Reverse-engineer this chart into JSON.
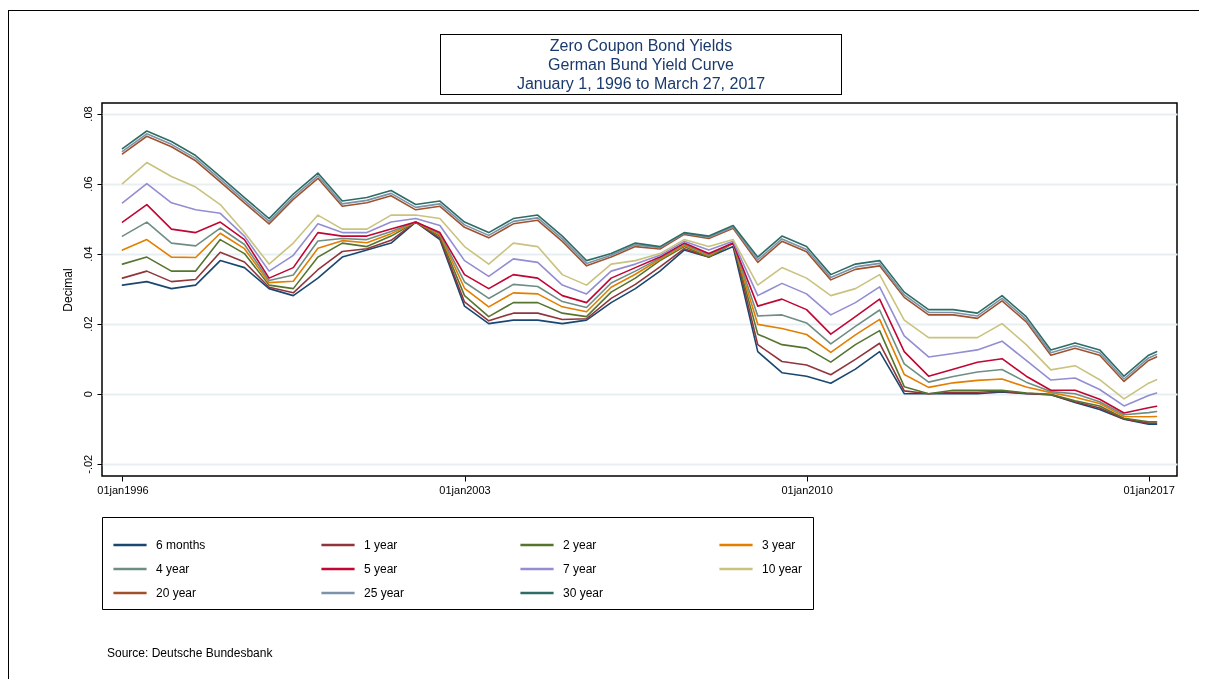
{
  "chart_data": {
    "type": "line",
    "title": "Zero Coupon Bond Yields",
    "subtitle": "German Bund Yield Curve\nJanuary 1, 1996 to March 27, 2017",
    "ylabel": "Decimal",
    "annotations": [
      "Source: Deutsche Bundesbank"
    ],
    "xlim": [
      "1995-08",
      "2017-08"
    ],
    "xticks": [
      {
        "value": "1996-01-01",
        "label": "01jan1996"
      },
      {
        "value": "2003-01-01",
        "label": "01jan2003"
      },
      {
        "value": "2010-01-01",
        "label": "01jan2010"
      },
      {
        "value": "2017-01-01",
        "label": "01jan2017"
      }
    ],
    "ylim": [
      -0.0235,
      0.083
    ],
    "yticks": [
      {
        "value": -0.02,
        "label": "-.02"
      },
      {
        "value": 0,
        "label": "0"
      },
      {
        "value": 0.02,
        "label": ".02"
      },
      {
        "value": 0.04,
        "label": ".04"
      },
      {
        "value": 0.06,
        "label": ".06"
      },
      {
        "value": 0.08,
        "label": ".08"
      }
    ],
    "grid": "y",
    "legend": "bottom",
    "line_style": "solid",
    "marker": "none",
    "x": [
      "1996-01",
      "1996-07",
      "1997-01",
      "1997-07",
      "1998-01",
      "1998-07",
      "1999-01",
      "1999-07",
      "2000-01",
      "2000-07",
      "2001-01",
      "2001-07",
      "2002-01",
      "2002-07",
      "2003-01",
      "2003-07",
      "2004-01",
      "2004-07",
      "2005-01",
      "2005-07",
      "2006-01",
      "2006-07",
      "2007-01",
      "2007-07",
      "2008-01",
      "2008-07",
      "2009-01",
      "2009-07",
      "2010-01",
      "2010-07",
      "2011-01",
      "2011-07",
      "2012-01",
      "2012-07",
      "2013-01",
      "2013-07",
      "2014-01",
      "2014-07",
      "2015-01",
      "2015-07",
      "2016-01",
      "2016-07",
      "2017-01",
      "2017-03"
    ],
    "series": [
      {
        "name": "6 months",
        "color": "#1a476f",
        "values": [
          0.031,
          0.032,
          0.03,
          0.031,
          0.038,
          0.036,
          0.03,
          0.028,
          0.033,
          0.039,
          0.041,
          0.043,
          0.049,
          0.044,
          0.025,
          0.02,
          0.021,
          0.021,
          0.02,
          0.021,
          0.026,
          0.03,
          0.035,
          0.041,
          0.039,
          0.042,
          0.012,
          0.006,
          0.005,
          0.003,
          0.007,
          0.012,
          0.0,
          0.0,
          0.0,
          0.0,
          0.0005,
          0.0,
          -0.0003,
          -0.0025,
          -0.0045,
          -0.0073,
          -0.0087,
          -0.0087
        ]
      },
      {
        "name": "1 year",
        "color": "#90353b",
        "values": [
          0.033,
          0.035,
          0.032,
          0.0326,
          0.0404,
          0.0376,
          0.0304,
          0.0288,
          0.0354,
          0.0406,
          0.0414,
          0.0438,
          0.049,
          0.0444,
          0.0262,
          0.0208,
          0.023,
          0.023,
          0.0212,
          0.0214,
          0.0272,
          0.0312,
          0.0362,
          0.0414,
          0.039,
          0.043,
          0.014,
          0.0092,
          0.0082,
          0.0054,
          0.0098,
          0.0144,
          0.0008,
          0.0,
          0.0004,
          0.0004,
          0.0007,
          0.0001,
          -0.0003,
          -0.0023,
          -0.0041,
          -0.0072,
          -0.0084,
          -0.0084
        ]
      },
      {
        "name": "2 year",
        "color": "#55752f",
        "values": [
          0.037,
          0.039,
          0.035,
          0.035,
          0.044,
          0.04,
          0.031,
          0.03,
          0.039,
          0.043,
          0.042,
          0.045,
          0.049,
          0.045,
          0.028,
          0.022,
          0.026,
          0.026,
          0.023,
          0.022,
          0.029,
          0.033,
          0.038,
          0.042,
          0.039,
          0.043,
          0.017,
          0.014,
          0.013,
          0.009,
          0.014,
          0.018,
          0.002,
          0.0,
          0.001,
          0.001,
          0.001,
          0.0002,
          -0.0002,
          -0.002,
          -0.0035,
          -0.007,
          -0.008,
          -0.008
        ]
      },
      {
        "name": "3 year",
        "color": "#e37e00",
        "values": [
          0.041,
          0.044,
          0.039,
          0.0389,
          0.0458,
          0.0414,
          0.0317,
          0.0321,
          0.0415,
          0.0437,
          0.0431,
          0.0457,
          0.049,
          0.0454,
          0.0301,
          0.0248,
          0.0288,
          0.0285,
          0.0248,
          0.0234,
          0.0304,
          0.0341,
          0.0384,
          0.0424,
          0.0394,
          0.043,
          0.0198,
          0.0186,
          0.0169,
          0.0118,
          0.0168,
          0.0212,
          0.0055,
          0.0018,
          0.0031,
          0.0038,
          0.0042,
          0.0019,
          0.0003,
          -0.001,
          -0.0028,
          -0.0065,
          -0.0066,
          -0.0065
        ]
      },
      {
        "name": "4 year",
        "color": "#6e8e84",
        "values": [
          0.045,
          0.049,
          0.043,
          0.0422,
          0.0473,
          0.0426,
          0.0323,
          0.0339,
          0.0436,
          0.0443,
          0.044,
          0.0463,
          0.049,
          0.0457,
          0.0319,
          0.0272,
          0.0312,
          0.0306,
          0.0263,
          0.0246,
          0.0316,
          0.035,
          0.0387,
          0.0427,
          0.0397,
          0.043,
          0.0222,
          0.0225,
          0.0202,
          0.0142,
          0.0192,
          0.0239,
          0.0085,
          0.0033,
          0.0049,
          0.0062,
          0.0069,
          0.0033,
          0.0006,
          0.0,
          -0.0023,
          -0.006,
          -0.0054,
          -0.0051
        ]
      },
      {
        "name": "5 year",
        "color": "#c10534",
        "values": [
          0.049,
          0.054,
          0.047,
          0.046,
          0.049,
          0.044,
          0.033,
          0.036,
          0.046,
          0.045,
          0.045,
          0.047,
          0.049,
          0.046,
          0.034,
          0.03,
          0.034,
          0.033,
          0.028,
          0.026,
          0.033,
          0.036,
          0.039,
          0.043,
          0.04,
          0.043,
          0.025,
          0.027,
          0.024,
          0.017,
          0.022,
          0.027,
          0.012,
          0.005,
          0.007,
          0.009,
          0.01,
          0.005,
          0.001,
          0.001,
          -0.0016,
          -0.0055,
          -0.004,
          -0.0036
        ]
      },
      {
        "name": "7 year",
        "color": "#938dd2",
        "values": [
          0.0545,
          0.06,
          0.0545,
          0.0525,
          0.0515,
          0.045,
          0.035,
          0.0395,
          0.0485,
          0.046,
          0.046,
          0.049,
          0.05,
          0.048,
          0.038,
          0.0335,
          0.0385,
          0.0375,
          0.031,
          0.0285,
          0.035,
          0.037,
          0.0395,
          0.0435,
          0.041,
          0.0435,
          0.028,
          0.0315,
          0.0285,
          0.0225,
          0.026,
          0.0305,
          0.0165,
          0.0105,
          0.0115,
          0.0125,
          0.015,
          0.0095,
          0.0039,
          0.0045,
          0.0012,
          -0.0035,
          -0.0005,
          0.0002
        ]
      },
      {
        "name": "10 year",
        "color": "#cac27e",
        "values": [
          0.06,
          0.066,
          0.062,
          0.059,
          0.054,
          0.046,
          0.037,
          0.043,
          0.051,
          0.047,
          0.047,
          0.051,
          0.051,
          0.05,
          0.042,
          0.037,
          0.043,
          0.042,
          0.034,
          0.031,
          0.037,
          0.038,
          0.04,
          0.044,
          0.042,
          0.044,
          0.031,
          0.036,
          0.033,
          0.028,
          0.03,
          0.034,
          0.021,
          0.016,
          0.016,
          0.016,
          0.02,
          0.014,
          0.0068,
          0.008,
          0.004,
          -0.0015,
          0.003,
          0.004
        ]
      },
      {
        "name": "20 year",
        "color": "#a0522d",
        "values": [
          0.0685,
          0.0735,
          0.0705,
          0.0665,
          0.0605,
          0.0545,
          0.0485,
          0.0555,
          0.0615,
          0.0535,
          0.0545,
          0.0565,
          0.0525,
          0.0535,
          0.0475,
          0.0445,
          0.0485,
          0.0495,
          0.0435,
          0.0365,
          0.039,
          0.042,
          0.0413,
          0.0455,
          0.0443,
          0.0472,
          0.0375,
          0.0435,
          0.0405,
          0.0325,
          0.0355,
          0.0365,
          0.0275,
          0.0225,
          0.0225,
          0.0215,
          0.0265,
          0.0205,
          0.011,
          0.013,
          0.011,
          0.0035,
          0.0095,
          0.0105
        ]
      },
      {
        "name": "25 year",
        "color": "#7b92a8",
        "values": [
          0.0692,
          0.0742,
          0.0712,
          0.0672,
          0.0612,
          0.0552,
          0.0492,
          0.0562,
          0.0622,
          0.0542,
          0.0552,
          0.0572,
          0.0532,
          0.0542,
          0.0482,
          0.0452,
          0.0492,
          0.0502,
          0.0442,
          0.0372,
          0.0395,
          0.0425,
          0.0417,
          0.0458,
          0.0447,
          0.0476,
          0.0382,
          0.0442,
          0.0412,
          0.0332,
          0.0362,
          0.0372,
          0.0282,
          0.0232,
          0.0232,
          0.0222,
          0.0272,
          0.0212,
          0.0117,
          0.0137,
          0.0117,
          0.0042,
          0.0102,
          0.0112
        ]
      },
      {
        "name": "30 year",
        "color": "#2d6d66",
        "values": [
          0.07,
          0.075,
          0.072,
          0.068,
          0.062,
          0.056,
          0.05,
          0.057,
          0.063,
          0.055,
          0.056,
          0.058,
          0.054,
          0.055,
          0.049,
          0.046,
          0.05,
          0.051,
          0.045,
          0.038,
          0.04,
          0.043,
          0.042,
          0.046,
          0.045,
          0.048,
          0.039,
          0.045,
          0.042,
          0.034,
          0.037,
          0.038,
          0.029,
          0.024,
          0.024,
          0.023,
          0.028,
          0.022,
          0.0125,
          0.0145,
          0.0125,
          0.005,
          0.011,
          0.012
        ]
      }
    ]
  }
}
